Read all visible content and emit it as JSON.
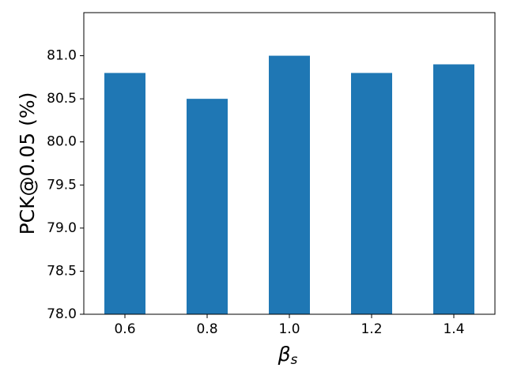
{
  "chart_data": {
    "type": "bar",
    "ylabel": "PCK@0.05 (%)",
    "xlabel": {
      "symbol": "β",
      "subscript": "s"
    },
    "categories": [
      "0.6",
      "0.8",
      "1.0",
      "1.2",
      "1.4"
    ],
    "values": [
      80.8,
      80.5,
      81.0,
      80.8,
      80.9
    ],
    "color": "#1f77b4",
    "ylim": [
      78,
      81.5
    ],
    "yticks": [
      {
        "value": 78,
        "label": "78.0"
      },
      78.5,
      {
        "value": 79,
        "label": "79.0"
      },
      79.5,
      {
        "value": 80,
        "label": "80.0"
      },
      80.5,
      {
        "value": 81,
        "label": "81.0"
      }
    ],
    "grid": false
  }
}
